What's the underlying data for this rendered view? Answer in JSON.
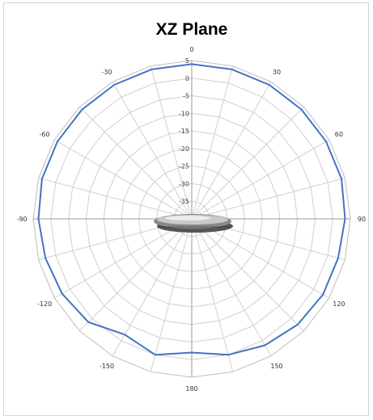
{
  "chart_data": {
    "type": "polar-line",
    "title": "XZ Plane",
    "radial_axis": {
      "min": -40,
      "max": 5,
      "step": 5,
      "tick_labels": [
        "5",
        "0",
        "-5",
        "-10",
        "-15",
        "-20",
        "-25",
        "-30",
        "-35"
      ]
    },
    "angular_axis": {
      "step_degrees": 15,
      "tick_labels": [
        "0",
        "30",
        "60",
        "90",
        "120",
        "150",
        "180",
        "-150",
        "-120",
        "-90",
        "-60",
        "-30"
      ],
      "tick_values": [
        0,
        30,
        60,
        90,
        120,
        150,
        180,
        -150,
        -120,
        -90,
        -60,
        -30
      ]
    },
    "grid": true,
    "series": [
      {
        "color": "#4472C4",
        "angles": [
          0,
          15,
          30,
          45,
          60,
          75,
          90,
          105,
          120,
          135,
          150,
          165,
          180,
          -165,
          -150,
          -135,
          -120,
          -105,
          -90,
          -75,
          -60,
          -45,
          -30,
          -15
        ],
        "values": [
          4,
          4,
          4,
          4,
          4,
          4,
          3.5,
          3,
          3,
          2.5,
          1.5,
          0,
          -2,
          0,
          -2,
          1.5,
          2.5,
          3,
          3.5,
          4,
          4,
          4,
          4,
          4
        ]
      }
    ],
    "inset": {
      "kind": "antenna-device-image"
    }
  }
}
